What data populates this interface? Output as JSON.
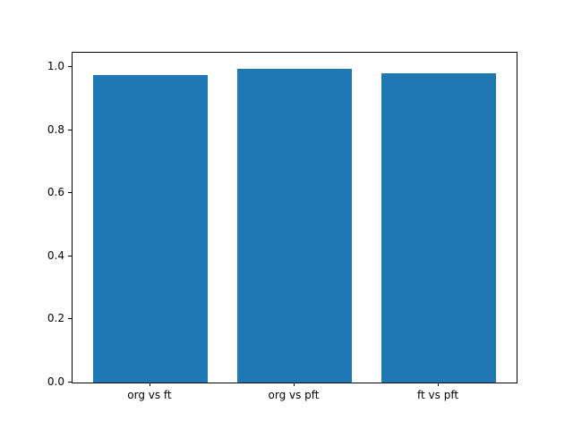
{
  "chart_data": {
    "type": "bar",
    "categories": [
      "org vs ft",
      "org vs pft",
      "ft vs pft"
    ],
    "values": [
      0.975,
      0.995,
      0.98
    ],
    "title": "",
    "xlabel": "",
    "ylabel": "",
    "ylim": [
      0,
      1.045
    ],
    "yticks": [
      0.0,
      0.2,
      0.4,
      0.6,
      0.8,
      1.0
    ],
    "ytick_labels": [
      "0.0",
      "0.2",
      "0.4",
      "0.6",
      "0.8",
      "1.0"
    ],
    "bar_color": "#1f77b4",
    "bar_width_fraction": 0.8,
    "x_margin": 0.14,
    "grid": false,
    "legend": false
  }
}
